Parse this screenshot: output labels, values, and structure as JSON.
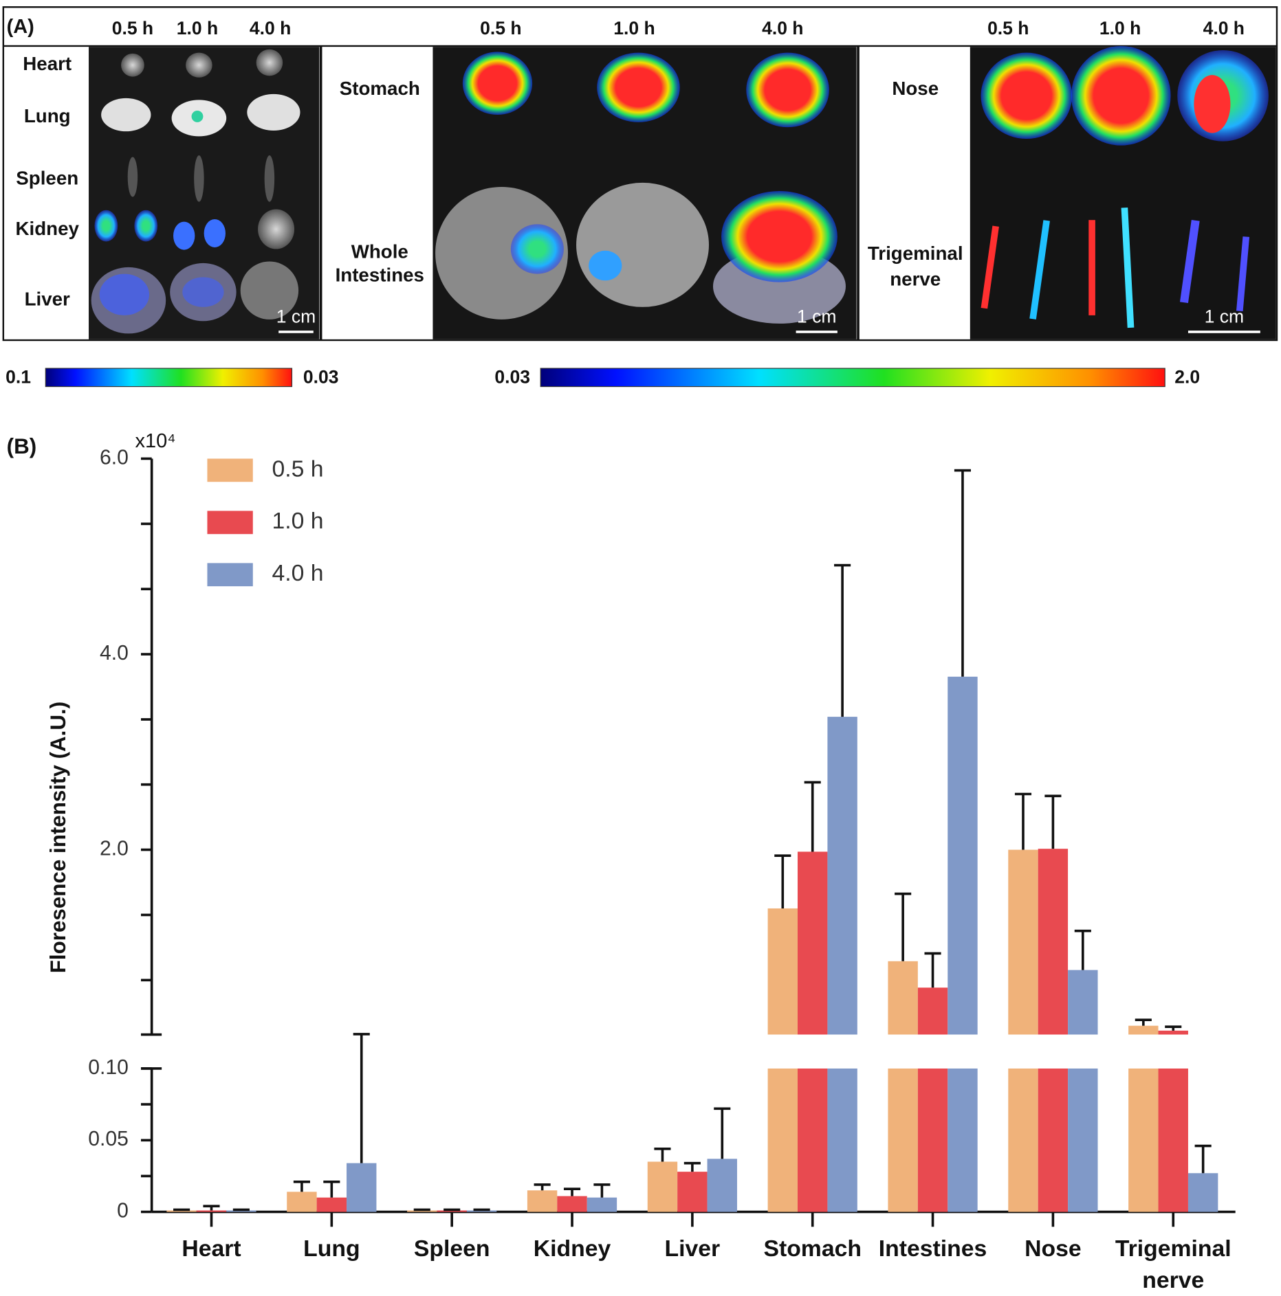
{
  "panel_a": {
    "label": "(A)",
    "groups": [
      {
        "times": [
          "0.5 h",
          "1.0 h",
          "4.0 h"
        ],
        "organs": [
          [
            "Heart"
          ],
          [
            "Lung"
          ],
          [
            "Spleen"
          ],
          [
            "Kidney"
          ],
          [
            "Liver"
          ]
        ],
        "scale_bar": "1 cm"
      },
      {
        "times": [
          "0.5 h",
          "1.0 h",
          "4.0 h"
        ],
        "organs": [
          [
            "Stomach"
          ],
          [
            "Whole",
            "Intestines"
          ]
        ],
        "scale_bar": "1 cm"
      },
      {
        "times": [
          "0.5 h",
          "1.0 h",
          "4.0 h"
        ],
        "organs": [
          [
            "Nose"
          ],
          [
            "Trigeminal",
            "nerve"
          ]
        ],
        "scale_bar": "1 cm"
      }
    ],
    "colorbars": [
      {
        "min_label": "0.1",
        "max_label": "0.03"
      },
      {
        "min_label": "0.03",
        "max_label": "2.0"
      }
    ]
  },
  "chart_data": {
    "type": "bar",
    "panel_label": "(B)",
    "y_label": "Floresence intensity (A.U.)",
    "y_multiplier_label": "x10⁴",
    "categories": [
      "Heart",
      "Lung",
      "Spleen",
      "Kidney",
      "Liver",
      "Stomach",
      "Intestines",
      "Nose",
      "Trigeminal nerve"
    ],
    "series": [
      {
        "name": "0.5 h",
        "color": "#f0b27a",
        "values": [
          0.001,
          0.014,
          0.001,
          0.015,
          0.035,
          14000,
          8600,
          20000,
          2000
        ],
        "errors": [
          0.0005,
          0.007,
          0.0005,
          0.004,
          0.009,
          5400,
          6900,
          5700,
          600
        ]
      },
      {
        "name": "1.0 h",
        "color": "#e84a50",
        "values": [
          0.001,
          0.01,
          0.001,
          0.011,
          0.028,
          19800,
          5900,
          20100,
          1500
        ],
        "errors": [
          0.003,
          0.011,
          0.0005,
          0.005,
          0.006,
          7100,
          3500,
          5400,
          400
        ]
      },
      {
        "name": "4.0 h",
        "color": "#8099c8",
        "values": [
          0.001,
          0.034,
          0.001,
          0.01,
          0.037,
          33600,
          37700,
          7700,
          0.027
        ],
        "errors": [
          0.0005,
          0.09,
          0.0005,
          0.009,
          0.035,
          15500,
          21100,
          4000,
          0.019
        ]
      }
    ],
    "segments": [
      {
        "ylim": [
          0,
          0.1
        ],
        "yticks": [
          0,
          {
            "value": 0.05,
            "label": "0.05"
          },
          {
            "value": 0.1,
            "label": "0.10"
          }
        ],
        "minor_yticks": [
          0.025,
          0.075
        ]
      },
      {
        "ylim": [
          1100,
          60000
        ],
        "yticks": [
          {
            "value": 20000,
            "label": "2.0"
          },
          {
            "value": 40000,
            "label": "4.0"
          },
          {
            "value": 60000,
            "label": "6.0"
          }
        ],
        "minor_yticks": [
          6667,
          13333,
          26667,
          33333,
          46667,
          53333
        ]
      }
    ],
    "legend": "upper left"
  }
}
